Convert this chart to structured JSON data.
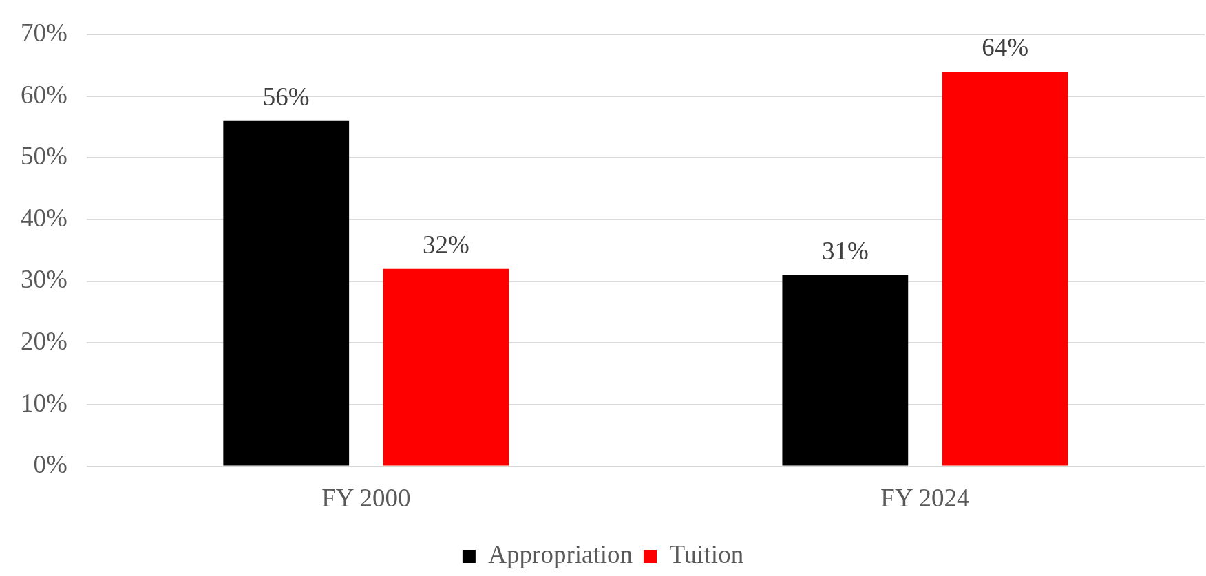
{
  "chart_data": {
    "type": "bar",
    "categories": [
      "FY 2000",
      "FY 2024"
    ],
    "series": [
      {
        "name": "Appropriation",
        "color": "#000000",
        "values": [
          56,
          31
        ],
        "value_labels": [
          "56%",
          "31%"
        ]
      },
      {
        "name": "Tuition",
        "color": "#ff0000",
        "values": [
          32,
          64
        ],
        "value_labels": [
          "32%",
          "64%"
        ]
      }
    ],
    "ylim": [
      0,
      70
    ],
    "yticks": [
      {
        "value": 0,
        "label": "0%"
      },
      {
        "value": 10,
        "label": "10%"
      },
      {
        "value": 20,
        "label": "20%"
      },
      {
        "value": 30,
        "label": "30%"
      },
      {
        "value": 40,
        "label": "40%"
      },
      {
        "value": 50,
        "label": "50%"
      },
      {
        "value": 60,
        "label": "60%"
      },
      {
        "value": 70,
        "label": "70%"
      }
    ],
    "grid": "y",
    "legend": "bottom"
  }
}
